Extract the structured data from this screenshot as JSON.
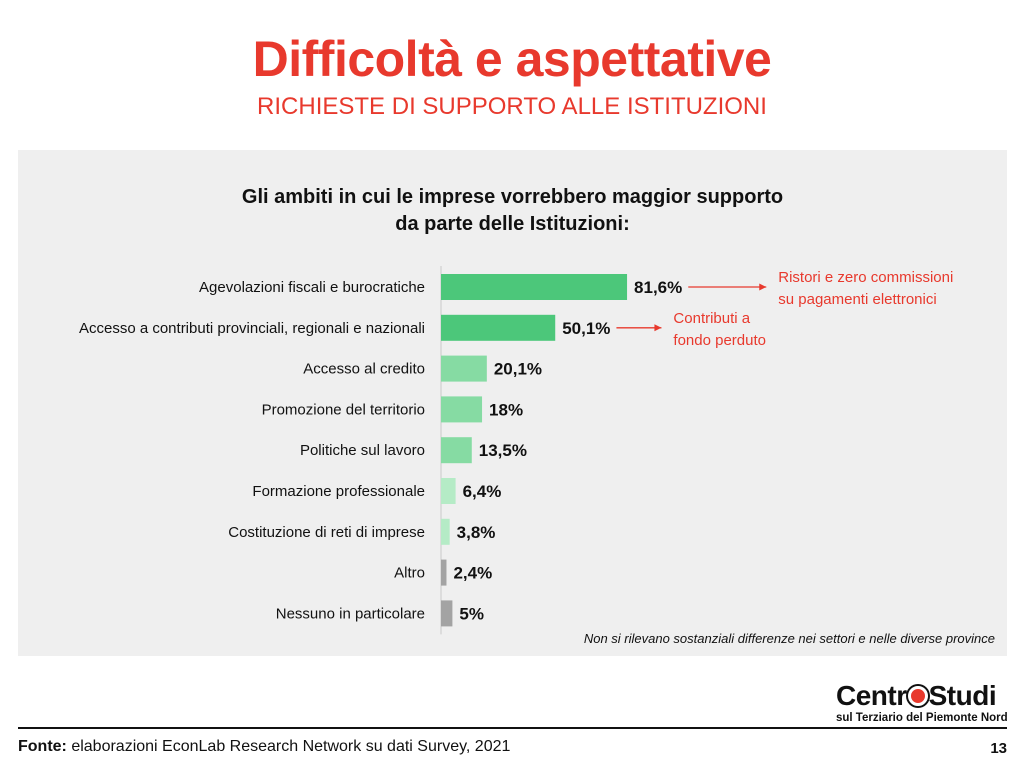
{
  "header": {
    "title": "Difficoltà e aspettative",
    "subtitle": "RICHIESTE DI SUPPORTO ALLE ISTITUZIONI"
  },
  "chart_data": {
    "type": "bar",
    "orientation": "horizontal",
    "title_line1": "Gli ambiti in cui le imprese vorrebbero maggior supporto",
    "title_line2": "da parte delle Istituzioni:",
    "categories": [
      "Agevolazioni fiscali e burocratiche",
      "Accesso a contributi provinciali, regionali e nazionali",
      "Accesso al credito",
      "Promozione del territorio",
      "Politiche sul lavoro",
      "Formazione professionale",
      "Costituzione di reti di imprese",
      "Altro",
      "Nessuno in particolare"
    ],
    "values": [
      81.6,
      50.1,
      20.1,
      18,
      13.5,
      6.4,
      3.8,
      2.4,
      5
    ],
    "value_labels": [
      "81,6%",
      "50,1%",
      "20,1%",
      "18%",
      "13,5%",
      "6,4%",
      "3,8%",
      "2,4%",
      "5%"
    ],
    "colors": [
      "#4cc77a",
      "#4cc77a",
      "#86dba3",
      "#86dba3",
      "#86dba3",
      "#b5ebc6",
      "#b5ebc6",
      "#a3a3a3",
      "#a3a3a3"
    ],
    "xlim": [
      0,
      100
    ],
    "grid": false,
    "annotations": [
      {
        "bar_index": 0,
        "text_lines": [
          "Ristori e zero commissioni",
          "su pagamenti elettronici"
        ]
      },
      {
        "bar_index": 1,
        "text_lines": [
          "Contributi a",
          "fondo perduto"
        ]
      }
    ],
    "accent_color": "#e8392d"
  },
  "note": "Non si rilevano sostanziali differenze nei settori e nelle diverse province",
  "logo": {
    "main_left": "Centr",
    "main_right": "Studi",
    "sub": "sul Terziario del Piemonte Nord"
  },
  "footer": {
    "source_label": "Fonte:",
    "source_text": " elaborazioni EconLab Research Network su dati Survey, 2021",
    "page_number": "13"
  }
}
